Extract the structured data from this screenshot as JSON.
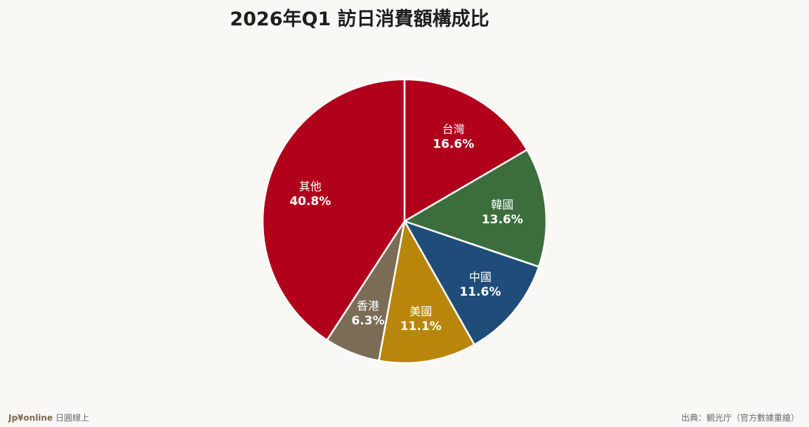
{
  "chart_data": {
    "type": "pie",
    "title": "2026年Q1 訪日消費額構成比",
    "slices": [
      {
        "label": "台灣",
        "value": 16.6,
        "value_label": "16.6%",
        "color": "#b0001b"
      },
      {
        "label": "韓國",
        "value": 13.6,
        "value_label": "13.6%",
        "color": "#3b6e3c"
      },
      {
        "label": "中國",
        "value": 11.6,
        "value_label": "11.6%",
        "color": "#1f4c78"
      },
      {
        "label": "美國",
        "value": 11.1,
        "value_label": "11.1%",
        "color": "#b8860b"
      },
      {
        "label": "香港",
        "value": 6.3,
        "value_label": "6.3%",
        "color": "#7a6c55"
      },
      {
        "label": "其他",
        "value": 40.8,
        "value_label": "40.8%",
        "color": "#b0001b"
      }
    ],
    "start": "12 o'clock",
    "direction": "clockwise"
  },
  "footer": {
    "brand": "Jp¥online",
    "brand_sub": "日圓線上",
    "source": "出典：観光庁（官方數據重繪）"
  }
}
